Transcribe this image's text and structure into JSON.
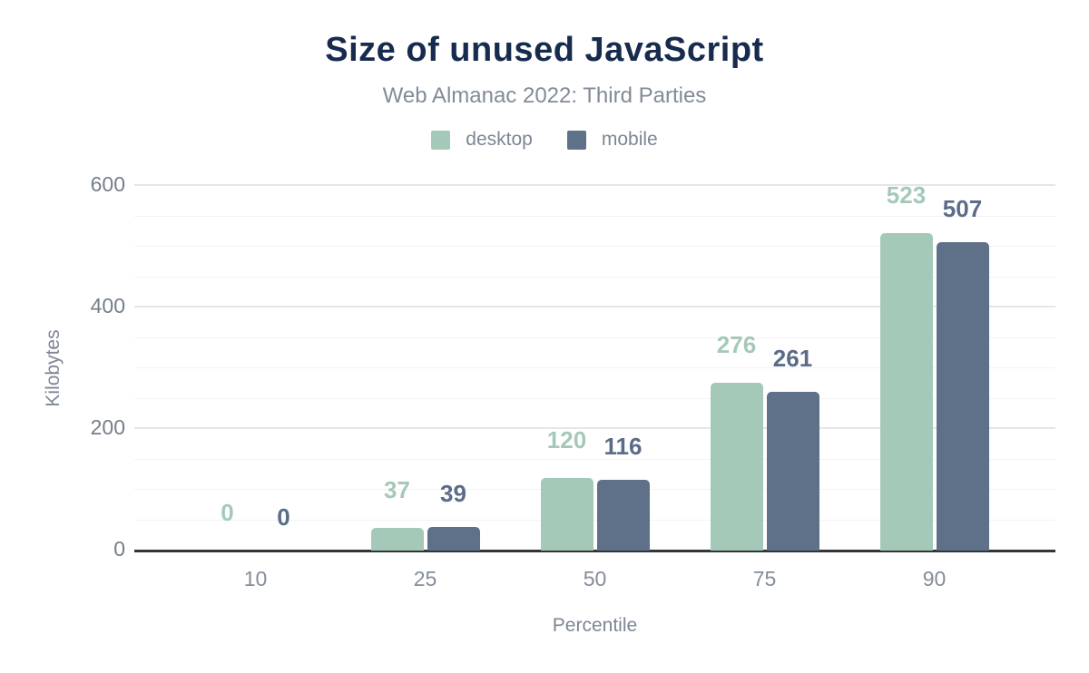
{
  "chart_data": {
    "type": "bar",
    "title": "Size of unused JavaScript",
    "subtitle": "Web Almanac 2022: Third Parties",
    "xlabel": "Percentile",
    "ylabel": "Kilobytes",
    "categories": [
      "10",
      "25",
      "50",
      "75",
      "90"
    ],
    "series": [
      {
        "name": "desktop",
        "values": [
          0,
          37,
          120,
          276,
          523
        ],
        "color": "#a5c9b8",
        "label_color": "#a5c9b8"
      },
      {
        "name": "mobile",
        "values": [
          0,
          39,
          116,
          261,
          507
        ],
        "color": "#5f7189",
        "label_color": "#5b6c88"
      }
    ],
    "ylim": [
      0,
      600
    ],
    "yticks": [
      0,
      200,
      400,
      600
    ],
    "minor_grid_step": 50,
    "grid": true,
    "legend_position": "top",
    "value_labels": true
  },
  "colors": {
    "title_text": "#172b4e",
    "muted_text": "#7d8694",
    "axis_line": "#313438",
    "grid_major": "#e4e6e9",
    "grid_minor": "#f2f3f5",
    "background": "#ffffff"
  }
}
